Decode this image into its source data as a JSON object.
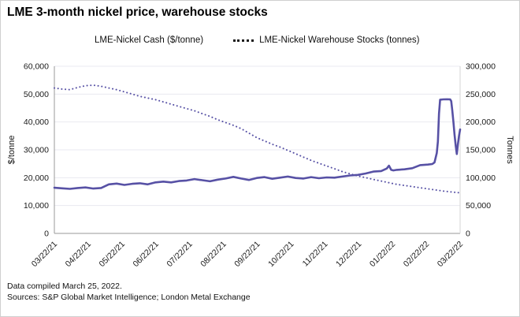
{
  "title": "LME 3-month nickel price, warehouse stocks",
  "footnotes": {
    "line1": "Data compiled March 25, 2022.",
    "line2": "Sources: S&P Global Market Intelligence; London Metal Exchange"
  },
  "colors": {
    "series": "#5751a5",
    "grid": "#e9e9f0",
    "axis": "#9a9a9a",
    "right_axis_line": "#d4d4d4",
    "text": "#1a1a1a"
  },
  "chart_data": {
    "type": "line",
    "title": "LME 3-month nickel price, warehouse stocks",
    "grid": "horizontal",
    "legend_position": "top",
    "x_ticks": [
      "03/22/21",
      "04/22/21",
      "05/22/21",
      "06/22/21",
      "07/22/21",
      "08/22/21",
      "09/22/21",
      "10/22/21",
      "11/22/21",
      "12/22/21",
      "01/22/22",
      "02/22/22",
      "03/22/22"
    ],
    "x_range_days": [
      0,
      365
    ],
    "left_axis": {
      "label": "$/tonne",
      "min": 0,
      "max": 60000,
      "tick_step": 10000,
      "ticks": [
        "0",
        "10,000",
        "20,000",
        "30,000",
        "40,000",
        "50,000",
        "60,000"
      ]
    },
    "right_axis": {
      "label": "Tonnes",
      "min": 0,
      "max": 300000,
      "tick_step": 50000,
      "ticks": [
        "0",
        "50,000",
        "100,000",
        "150,000",
        "200,000",
        "250,000",
        "300,000"
      ]
    },
    "series": [
      {
        "name": "LME-Nickel Cash ($/tonne)",
        "axis": "left",
        "style": "solid",
        "x_days": [
          0,
          7,
          14,
          21,
          28,
          35,
          42,
          49,
          56,
          63,
          70,
          77,
          84,
          91,
          98,
          105,
          112,
          119,
          126,
          133,
          140,
          147,
          154,
          161,
          168,
          175,
          182,
          189,
          196,
          203,
          210,
          217,
          224,
          231,
          238,
          245,
          252,
          259,
          266,
          273,
          280,
          287,
          294,
          299,
          301,
          303,
          305,
          308,
          315,
          322,
          329,
          336,
          340,
          342,
          344,
          345,
          346,
          347,
          350,
          353,
          356,
          357,
          358,
          359,
          360,
          361,
          362,
          363,
          364,
          365
        ],
        "values": [
          16400,
          16200,
          16000,
          16300,
          16500,
          16100,
          16300,
          17600,
          17900,
          17400,
          17800,
          18000,
          17600,
          18300,
          18600,
          18300,
          18800,
          19000,
          19500,
          19100,
          18700,
          19300,
          19700,
          20300,
          19700,
          19200,
          19900,
          20200,
          19600,
          20000,
          20400,
          19900,
          19700,
          20200,
          19800,
          20100,
          20000,
          20400,
          20800,
          21000,
          21500,
          22200,
          22400,
          23300,
          24300,
          22800,
          22600,
          22800,
          23000,
          23400,
          24500,
          24700,
          24900,
          25500,
          28900,
          33000,
          43000,
          48000,
          48100,
          48150,
          48100,
          47500,
          44000,
          40000,
          35500,
          31500,
          28500,
          32000,
          35000,
          37300
        ]
      },
      {
        "name": "LME-Nickel Warehouse Stocks (tonnes)",
        "axis": "right",
        "style": "dotted",
        "x_days": [
          0,
          7,
          14,
          21,
          28,
          35,
          42,
          49,
          56,
          63,
          70,
          77,
          84,
          91,
          98,
          105,
          112,
          119,
          126,
          133,
          140,
          147,
          154,
          161,
          168,
          175,
          182,
          189,
          196,
          203,
          210,
          217,
          224,
          231,
          238,
          245,
          252,
          259,
          266,
          273,
          280,
          287,
          294,
          301,
          308,
          315,
          322,
          329,
          336,
          343,
          350,
          357,
          364
        ],
        "values": [
          261000,
          259000,
          258000,
          262000,
          265000,
          266000,
          264000,
          261000,
          258000,
          254000,
          250000,
          246000,
          243000,
          240000,
          236000,
          232000,
          228000,
          224000,
          220000,
          215000,
          210000,
          204000,
          199000,
          194000,
          188000,
          180000,
          172000,
          166000,
          160000,
          155000,
          149000,
          143000,
          137000,
          131000,
          126000,
          121000,
          116000,
          111000,
          107000,
          103000,
          100000,
          97000,
          94000,
          91000,
          88000,
          86000,
          84000,
          82000,
          80000,
          78000,
          76000,
          74500,
          73000
        ]
      }
    ]
  }
}
